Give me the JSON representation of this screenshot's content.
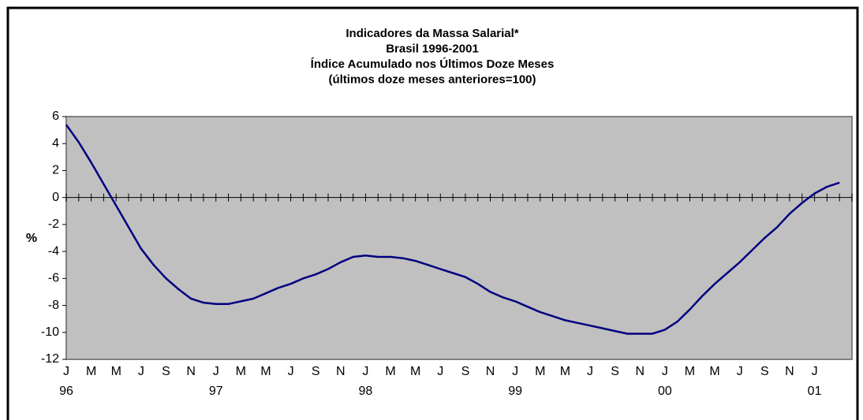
{
  "chart_data": {
    "type": "line",
    "title": [
      "Indicadores da Massa Salarial*",
      "Brasil 1996-2001",
      "Índice Acumulado nos Últimos Doze Meses",
      "(últimos doze meses anteriores=100)"
    ],
    "y_label": "%",
    "categories": [
      "J",
      null,
      "M",
      null,
      "M",
      null,
      "J",
      null,
      "S",
      null,
      "N",
      null,
      "J",
      null,
      "M",
      null,
      "M",
      null,
      "J",
      null,
      "S",
      null,
      "N",
      null,
      "J",
      null,
      "M",
      null,
      "M",
      null,
      "J",
      null,
      "S",
      null,
      "N",
      null,
      "J",
      null,
      "M",
      null,
      "M",
      null,
      "J",
      null,
      "S",
      null,
      "N",
      null,
      "J",
      null,
      "M",
      null,
      "M",
      null,
      "J",
      null,
      "S",
      null,
      "N",
      null,
      "J",
      null,
      null,
      null
    ],
    "category_years": [
      "96",
      null,
      null,
      null,
      null,
      null,
      null,
      null,
      null,
      null,
      null,
      null,
      "97",
      null,
      null,
      null,
      null,
      null,
      null,
      null,
      null,
      null,
      null,
      null,
      "98",
      null,
      null,
      null,
      null,
      null,
      null,
      null,
      null,
      null,
      null,
      null,
      "99",
      null,
      null,
      null,
      null,
      null,
      null,
      null,
      null,
      null,
      null,
      null,
      "00",
      null,
      null,
      null,
      null,
      null,
      null,
      null,
      null,
      null,
      null,
      null,
      "01",
      null,
      null,
      null
    ],
    "series": [
      {
        "name": null,
        "color": "#000080",
        "values": [
          5.4,
          4.1,
          2.6,
          1.0,
          -0.6,
          -2.2,
          -3.8,
          -5.0,
          -6.0,
          -6.8,
          -7.5,
          -7.8,
          -7.9,
          -7.9,
          -7.7,
          -7.5,
          -7.1,
          -6.7,
          -6.4,
          -6.0,
          -5.7,
          -5.3,
          -4.8,
          -4.4,
          -4.3,
          -4.4,
          -4.4,
          -4.5,
          -4.7,
          -5.0,
          -5.3,
          -5.6,
          -5.9,
          -6.4,
          -7.0,
          -7.4,
          -7.7,
          -8.1,
          -8.5,
          -8.8,
          -9.1,
          -9.3,
          -9.5,
          -9.7,
          -9.9,
          -10.1,
          -10.1,
          -10.1,
          -9.8,
          -9.2,
          -8.3,
          -7.3,
          -6.4,
          -5.6,
          -4.8,
          -3.9,
          -3.0,
          -2.2,
          -1.2,
          -0.4,
          0.3,
          0.8,
          1.1,
          null
        ]
      }
    ],
    "ylim": [
      -12,
      6
    ],
    "yticks": [
      -12,
      -10,
      -8,
      -6,
      -4,
      -2,
      0,
      2,
      4,
      6
    ],
    "plot_background": "#c0c0c0"
  }
}
